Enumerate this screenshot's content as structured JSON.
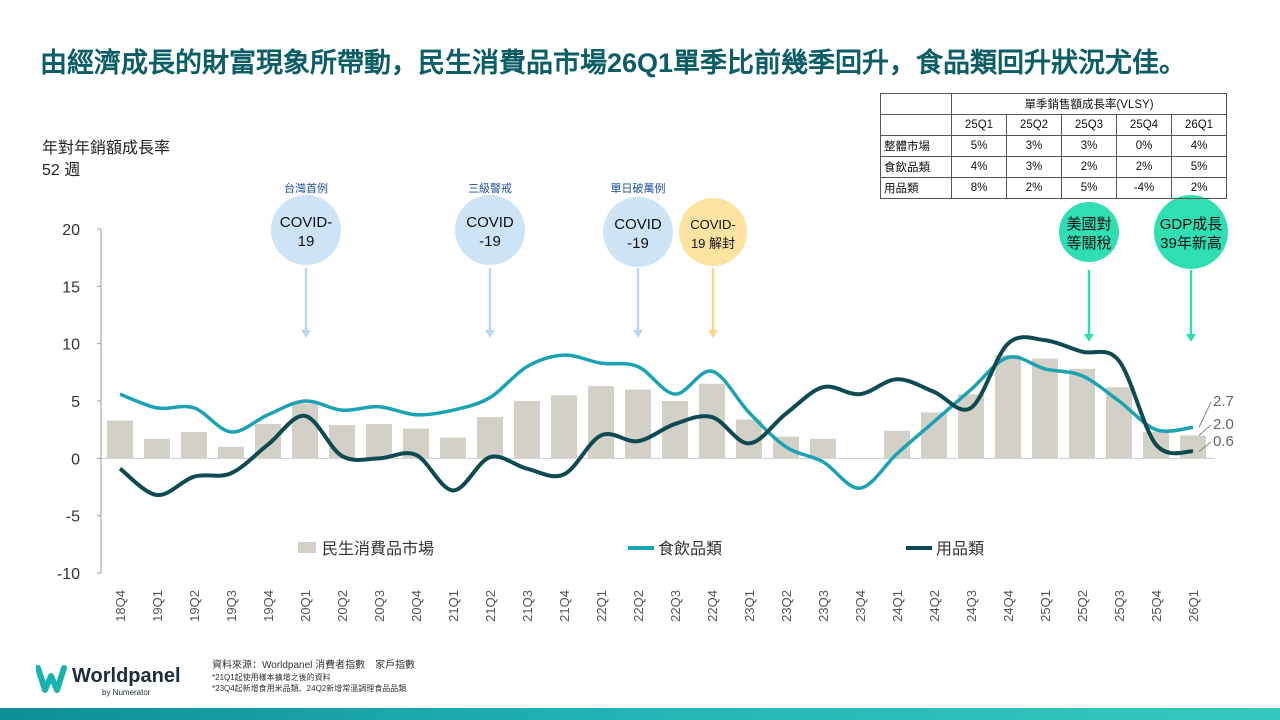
{
  "title": "由經濟成長的財富現象所帶動，民生消費品市場26Q1單季比前幾季回升，食品類回升狀況尤佳。",
  "chart_data": {
    "type": "combo",
    "y_label_lines": [
      "年對年銷額成長率",
      "52 週"
    ],
    "categories": [
      "18Q4",
      "19Q1",
      "19Q2",
      "19Q3",
      "19Q4",
      "20Q1",
      "20Q2",
      "20Q3",
      "20Q4",
      "21Q1",
      "21Q2",
      "21Q3",
      "21Q4",
      "22Q1",
      "22Q2",
      "22Q3",
      "22Q4",
      "23Q1",
      "23Q2",
      "23Q3",
      "23Q4",
      "24Q1",
      "24Q2",
      "24Q3",
      "24Q4",
      "25Q1",
      "25Q2",
      "25Q3",
      "25Q4",
      "26Q1"
    ],
    "series": [
      {
        "name": "民生消費品市場",
        "type": "bar",
        "color": "#d3d1c7",
        "values": [
          3.3,
          1.7,
          2.3,
          1.0,
          3.0,
          4.8,
          2.9,
          3.0,
          2.6,
          1.8,
          3.6,
          5.0,
          5.5,
          6.3,
          6.0,
          5.0,
          6.5,
          3.4,
          1.9,
          1.7,
          0,
          2.4,
          4.0,
          5.6,
          9.0,
          8.7,
          7.8,
          6.2,
          2.3,
          2.0
        ],
        "value_labels": [
          null,
          null,
          null,
          null,
          null,
          null,
          null,
          null,
          null,
          null,
          null,
          null,
          null,
          null,
          null,
          null,
          null,
          null,
          null,
          null,
          null,
          null,
          null,
          null,
          null,
          null,
          null,
          null,
          null,
          "2.0"
        ]
      },
      {
        "name": "食飲品類",
        "type": "line",
        "color": "#1ba3b5",
        "values": [
          5.6,
          4.4,
          4.4,
          2.3,
          3.8,
          5.0,
          4.2,
          4.5,
          3.8,
          4.2,
          5.3,
          8.0,
          9.0,
          8.3,
          8.0,
          5.6,
          7.6,
          4.0,
          1.0,
          -0.3,
          -2.6,
          0.4,
          3.2,
          6.0,
          8.8,
          7.8,
          7.2,
          5.0,
          2.5,
          2.7
        ]
      },
      {
        "name": "用品類",
        "type": "line",
        "color": "#0e4a52",
        "values": [
          -0.9,
          -3.2,
          -1.6,
          -1.3,
          1.2,
          3.7,
          0.2,
          0.0,
          0.3,
          -2.8,
          0.1,
          -0.9,
          -1.4,
          2.0,
          1.5,
          3.0,
          3.6,
          1.3,
          3.9,
          6.2,
          5.6,
          6.9,
          5.8,
          4.4,
          10.0,
          10.3,
          9.3,
          8.5,
          1.2,
          0.6
        ]
      }
    ],
    "ylim": [
      -10,
      20
    ],
    "yticks": [
      -10,
      -5,
      0,
      5,
      10,
      15,
      20
    ],
    "grid": false,
    "annotations": [
      {
        "header": "台灣首例",
        "lines": [
          "COVID-",
          "19"
        ],
        "color": "#cde3f6",
        "arrow": "#b9d8f0"
      },
      {
        "header": "三級警戒",
        "lines": [
          "COVID",
          "-19"
        ],
        "color": "#cde3f6",
        "arrow": "#b9d8f0"
      },
      {
        "header": "單日破萬例",
        "lines": [
          "COVID",
          "-19"
        ],
        "color": "#cde3f6",
        "arrow": "#b9d8f0"
      },
      {
        "lines": [
          "COVID-",
          "19 解封"
        ],
        "color": "#fde3a1",
        "arrow": "#f5d68a"
      },
      {
        "lines": [
          "美國對",
          "等關稅"
        ],
        "color": "#2fdeb3",
        "arrow": "#2fdeb3"
      },
      {
        "lines": [
          "GDP成長",
          "39年新高"
        ],
        "color": "#2fdeb3",
        "arrow": "#2fdeb3"
      }
    ]
  },
  "table": {
    "title": "單季銷售額成長率(VLSY)",
    "columns": [
      "25Q1",
      "25Q2",
      "25Q3",
      "25Q4",
      "26Q1"
    ],
    "rows": [
      [
        "整體市場",
        "5%",
        "3%",
        "3%",
        "0%",
        "4%"
      ],
      [
        "食飲品類",
        "4%",
        "3%",
        "2%",
        "2%",
        "5%"
      ],
      [
        "用品類",
        "8%",
        "2%",
        "5%",
        "-4%",
        "2%"
      ]
    ]
  },
  "footer": {
    "brand": "Worldpanel",
    "brand_sub": "by Numerator",
    "notes": [
      "資料來源：Worldpanel 消費者指數　家戶指數",
      "*21Q1起使用樣本擴增之後的資料",
      "*23Q4起新增食用米品類、24Q2新增常溫調理食品品類"
    ]
  }
}
